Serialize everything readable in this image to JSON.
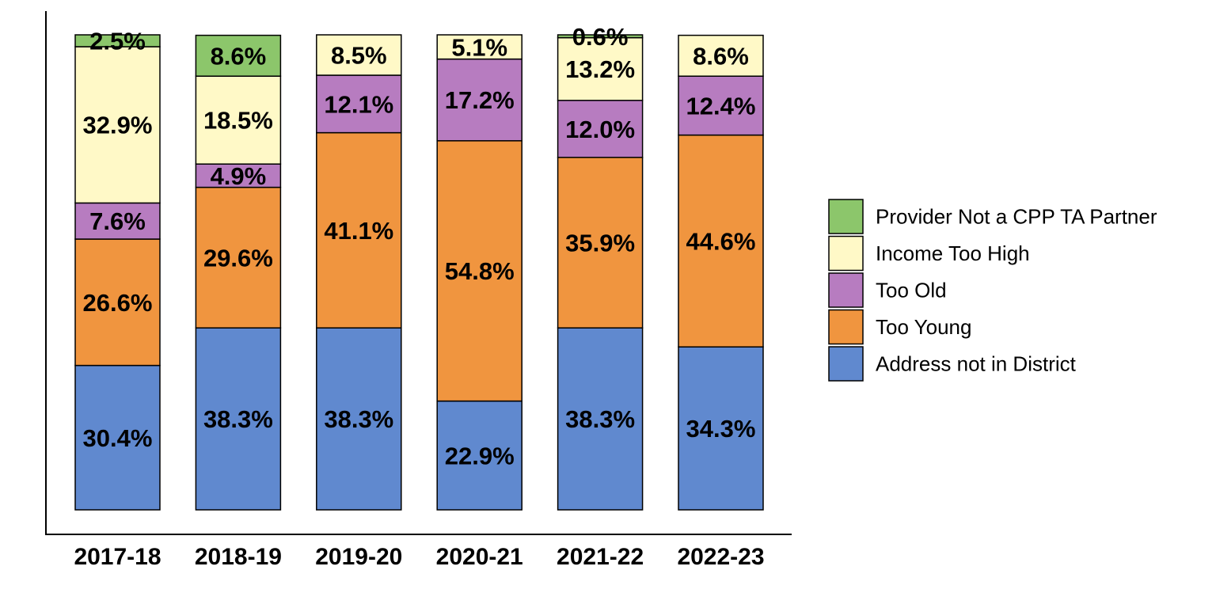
{
  "chart_data": {
    "type": "bar",
    "stacked": true,
    "title": "",
    "xlabel": "",
    "ylabel": "",
    "ylim": [
      0,
      100
    ],
    "grid": false,
    "legend_position": "right",
    "categories": [
      "2017-18",
      "2018-19",
      "2019-20",
      "2020-21",
      "2021-22",
      "2022-23"
    ],
    "series": [
      {
        "name": "Address not in District",
        "color": "#6089CF",
        "values": [
          30.4,
          38.3,
          38.3,
          22.9,
          38.3,
          34.3
        ],
        "labels": [
          "30.4%",
          "38.3%",
          "38.3%",
          "22.9%",
          "38.3%",
          "34.3%"
        ]
      },
      {
        "name": "Too Young",
        "color": "#F0953F",
        "values": [
          26.6,
          29.6,
          41.1,
          54.8,
          35.9,
          44.6
        ],
        "labels": [
          "26.6%",
          "29.6%",
          "41.1%",
          "54.8%",
          "35.9%",
          "44.6%"
        ]
      },
      {
        "name": "Too Old",
        "color": "#B77CC0",
        "values": [
          7.6,
          4.9,
          12.1,
          17.2,
          12.0,
          12.4
        ],
        "labels": [
          "7.6%",
          "4.9%",
          "12.1%",
          "17.2%",
          "12.0%",
          "12.4%"
        ]
      },
      {
        "name": "Income Too High",
        "color": "#FFF9C7",
        "values": [
          32.9,
          18.5,
          8.5,
          5.1,
          13.2,
          8.6
        ],
        "labels": [
          "32.9%",
          "18.5%",
          "8.5%",
          "5.1%",
          "13.2%",
          "8.6%"
        ]
      },
      {
        "name": "Provider Not a CPP TA Partner",
        "color": "#8CC66B",
        "values": [
          2.5,
          8.6,
          0,
          0,
          0.6,
          0
        ],
        "labels": [
          "2.5%",
          "8.6%",
          "",
          "",
          "0.6%",
          ""
        ]
      }
    ],
    "legend_order": [
      "Provider Not a CPP TA Partner",
      "Income Too High",
      "Too Old",
      "Too Young",
      "Address not in District"
    ]
  }
}
